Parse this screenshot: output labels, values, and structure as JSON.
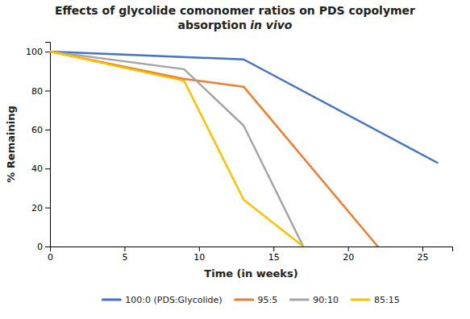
{
  "chart_data": {
    "type": "line",
    "title": [
      "Effects of glycolide comonomer ratios on PDS copolymer",
      "absorption",
      "in vivo"
    ],
    "x_label": "Time (in weeks)",
    "y_label": "% Remaining",
    "xlim": [
      0,
      27
    ],
    "ylim": [
      0,
      105
    ],
    "xticks": [
      0,
      5,
      10,
      15,
      20,
      25
    ],
    "yticks": [
      0,
      20,
      40,
      60,
      80,
      100
    ],
    "grid": false,
    "legend": "bottom",
    "series": [
      {
        "name": "100:0 (PDS:Glycolide)",
        "color": "#4472C4",
        "x": [
          0,
          13,
          26
        ],
        "values": [
          100,
          96,
          43
        ]
      },
      {
        "name": "95:5",
        "color": "#ED7D31",
        "x": [
          0,
          9,
          13,
          22
        ],
        "values": [
          100,
          86,
          82,
          0
        ]
      },
      {
        "name": "90:10",
        "color": "#A5A5A5",
        "x": [
          0,
          9,
          13,
          17
        ],
        "values": [
          100,
          91,
          62,
          0
        ]
      },
      {
        "name": "85:15",
        "color": "#FFC000",
        "x": [
          0,
          9,
          13,
          17
        ],
        "values": [
          100,
          85,
          24,
          0
        ]
      }
    ]
  }
}
